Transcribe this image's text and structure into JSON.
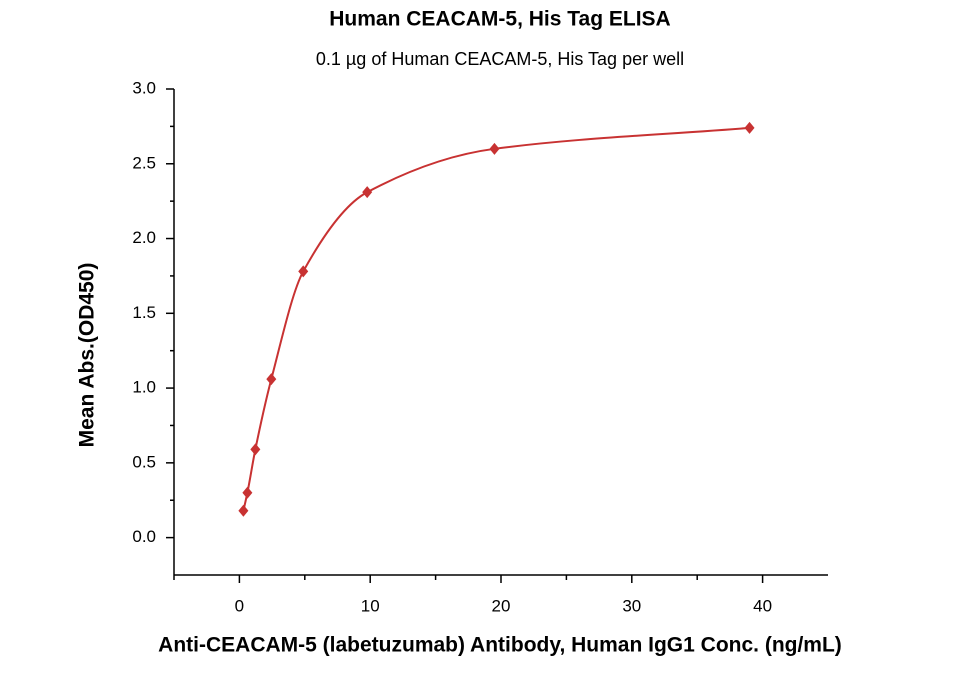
{
  "chart_data": {
    "type": "scatter",
    "title": "Human CEACAM-5, His Tag ELISA",
    "subtitle": "0.1 µg of Human CEACAM-5, His Tag per well",
    "x_label": "Anti-CEACAM-5 (labetuzumab) Antibody, Human IgG1 Conc. (ng/mL)",
    "y_label": "Mean Abs.(OD450)",
    "x": [
      0.305,
      0.61,
      1.22,
      2.44,
      4.88,
      9.77,
      19.5,
      39
    ],
    "values": [
      0.18,
      0.3,
      0.59,
      1.06,
      1.78,
      2.31,
      2.6,
      2.74
    ],
    "color": "#c83232",
    "xlim": [
      -5,
      45
    ],
    "xticks": [
      0,
      10,
      20,
      30,
      40
    ],
    "ylim": [
      -0.25,
      3.0
    ],
    "yticks": [
      {
        "value": 0,
        "label": "0.0"
      },
      0.5,
      {
        "value": 1,
        "label": "1.0"
      },
      1.5,
      {
        "value": 2,
        "label": "2.0"
      },
      2.5,
      {
        "value": 3,
        "label": "3.0"
      }
    ],
    "grid": false
  }
}
